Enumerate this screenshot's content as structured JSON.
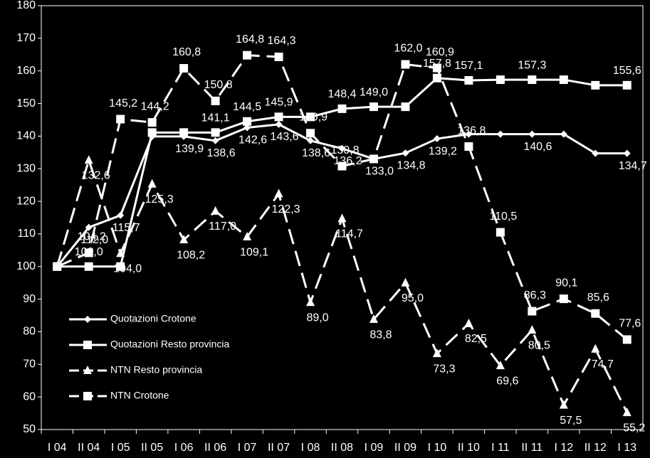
{
  "chart_data": {
    "type": "line",
    "categories": [
      "I 04",
      "II 04",
      "I 05",
      "II 05",
      "I 06",
      "II 06",
      "I 07",
      "II 07",
      "I 08",
      "II 08",
      "I 09",
      "II 09",
      "I 10",
      "II 10",
      "I 11",
      "II 11",
      "I 12",
      "II 12",
      "I 13"
    ],
    "ylim": [
      50,
      180
    ],
    "yticks": [
      50,
      60,
      70,
      80,
      90,
      100,
      110,
      120,
      130,
      140,
      150,
      160,
      170,
      180
    ],
    "series": [
      {
        "name": "Quotazioni Crotone",
        "color": "#ffffff",
        "marker": "diamond",
        "dashed": false,
        "values": [
          100,
          112.0,
          115.7,
          139.9,
          139.9,
          138.6,
          142.6,
          143.6,
          138.6,
          136.2,
          133.0,
          134.8,
          139.2,
          140.6,
          140.6,
          140.6,
          140.6,
          134.7,
          134.7
        ],
        "value_labels": [
          null,
          "112,0",
          "115,7",
          null,
          "139,9",
          "138,6",
          "142,6",
          "143,6",
          "138,6",
          "136,2",
          "133,0",
          "134,8",
          "139,2",
          null,
          null,
          "140,6",
          null,
          null,
          "134,7"
        ]
      },
      {
        "name": "Quotazioni Resto provincia",
        "color": "#ffffff",
        "marker": "square",
        "dashed": false,
        "values": [
          100,
          100.0,
          100,
          141.1,
          141.1,
          141.1,
          144.5,
          145.9,
          145.9,
          148.4,
          149.0,
          149.0,
          157.8,
          157.1,
          157.3,
          157.3,
          157.3,
          155.6,
          155.6
        ],
        "value_labels": [
          null,
          "100,0",
          null,
          null,
          null,
          "141,1",
          "144,5",
          "145,9",
          null,
          "148,4",
          "149,0",
          null,
          "157,8",
          "157,1",
          null,
          "157,3",
          null,
          null,
          "155,6"
        ]
      },
      {
        "name": "NTN Resto provincia",
        "color": "#ffffff",
        "marker": "triangle",
        "dashed": true,
        "values": [
          100,
          132.6,
          104.0,
          125.3,
          108.2,
          117.0,
          109.1,
          122.3,
          89.0,
          114.7,
          83.8,
          95.0,
          73.3,
          82.5,
          69.6,
          80.5,
          57.5,
          74.7,
          55.2
        ],
        "value_labels": [
          null,
          "132,6",
          "104,0",
          "125,3",
          "108,2",
          "117,0",
          "109,1",
          "122,3",
          "89,0",
          "114,7",
          "83,8",
          "95,0",
          "73,3",
          "82,5",
          "69,6",
          "80,5",
          "57,5",
          "74,7",
          "55,2"
        ]
      },
      {
        "name": "NTN Crotone",
        "color": "#ffffff",
        "marker": "square",
        "dashed": true,
        "values": [
          100,
          104.2,
          145.2,
          144.2,
          160.8,
          150.8,
          164.8,
          164.3,
          140.9,
          130.8,
          133.0,
          162.0,
          160.9,
          136.8,
          110.5,
          86.3,
          90.1,
          85.6,
          77.6
        ],
        "value_labels": [
          null,
          "104,2",
          "145,2",
          "144,2",
          "160,8",
          "150,8",
          "164,8",
          "164,3",
          "140,9",
          "130,8",
          null,
          "162,0",
          "160,9",
          "136,8",
          "110,5",
          "86,3",
          "90,1",
          "85,6",
          "77,6"
        ]
      }
    ]
  }
}
